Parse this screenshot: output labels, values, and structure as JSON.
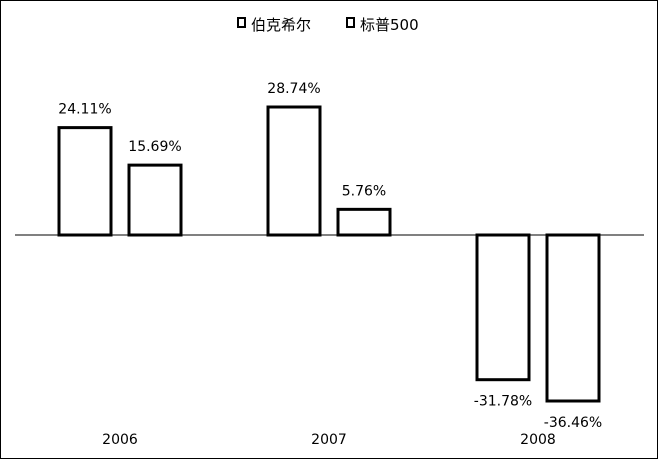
{
  "chart_data": {
    "type": "bar",
    "categories": [
      "2006",
      "2007",
      "2008"
    ],
    "series": [
      {
        "name": "伯克希尔",
        "values": [
          24.11,
          28.74,
          -31.78
        ],
        "labels": [
          "24.11%",
          "28.74%",
          "-31.78%"
        ]
      },
      {
        "name": "标普500",
        "values": [
          15.69,
          5.76,
          -36.46
        ],
        "labels": [
          "15.69%",
          "5.76%",
          "-36.46%"
        ]
      }
    ],
    "title": "",
    "xlabel": "",
    "ylabel": "",
    "ylim": [
      -36.46,
      28.74
    ],
    "grid": false,
    "legend_position": "top-center",
    "bar_fill": "#ffffff",
    "bar_stroke": "#000000"
  }
}
